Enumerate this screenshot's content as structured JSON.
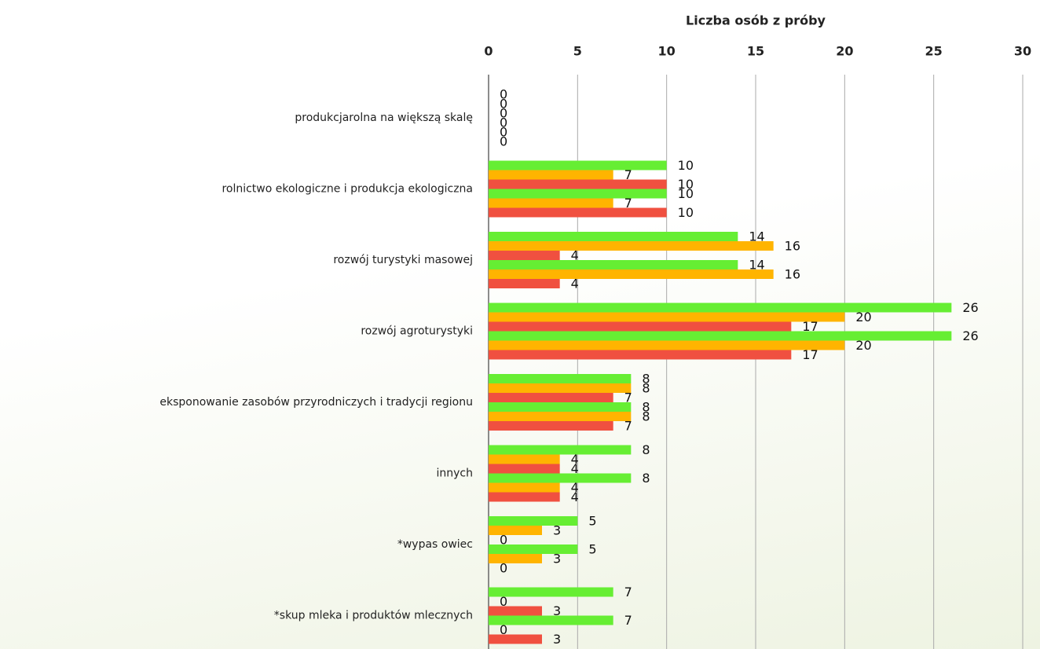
{
  "chart_data": {
    "type": "barh",
    "x_label": "Liczba osób z próby",
    "categories": [
      "produkcjarolna na większą skalę",
      "rolnictwo ekologiczne i produkcja ekologiczna",
      "rozwój turystyki masowej",
      "rozwój agroturystyki",
      "eksponowanie zasobów przyrodniczych i tradycji regionu",
      "innych",
      "*wypas owiec",
      "*skup mleka i produktów mlecznych"
    ],
    "series": [
      {
        "color": "#66ee33",
        "values": [
          0,
          10,
          14,
          26,
          8,
          8,
          5,
          7
        ]
      },
      {
        "color": "#ffb400",
        "values": [
          0,
          7,
          16,
          20,
          8,
          4,
          3,
          0
        ]
      },
      {
        "color": "#f05040",
        "values": [
          0,
          10,
          4,
          17,
          7,
          4,
          0,
          3
        ]
      },
      {
        "color": "#66ee33",
        "values": [
          0,
          10,
          14,
          26,
          8,
          8,
          5,
          7
        ]
      },
      {
        "color": "#ffb400",
        "values": [
          0,
          7,
          16,
          20,
          8,
          4,
          3,
          0
        ]
      },
      {
        "color": "#f05040",
        "values": [
          0,
          10,
          4,
          17,
          7,
          4,
          0,
          3
        ]
      }
    ],
    "xlim": [
      0,
      30
    ],
    "xticks": [
      0,
      5,
      10,
      15,
      20,
      25,
      30
    ],
    "grid": true,
    "xaxis_position": "top"
  }
}
